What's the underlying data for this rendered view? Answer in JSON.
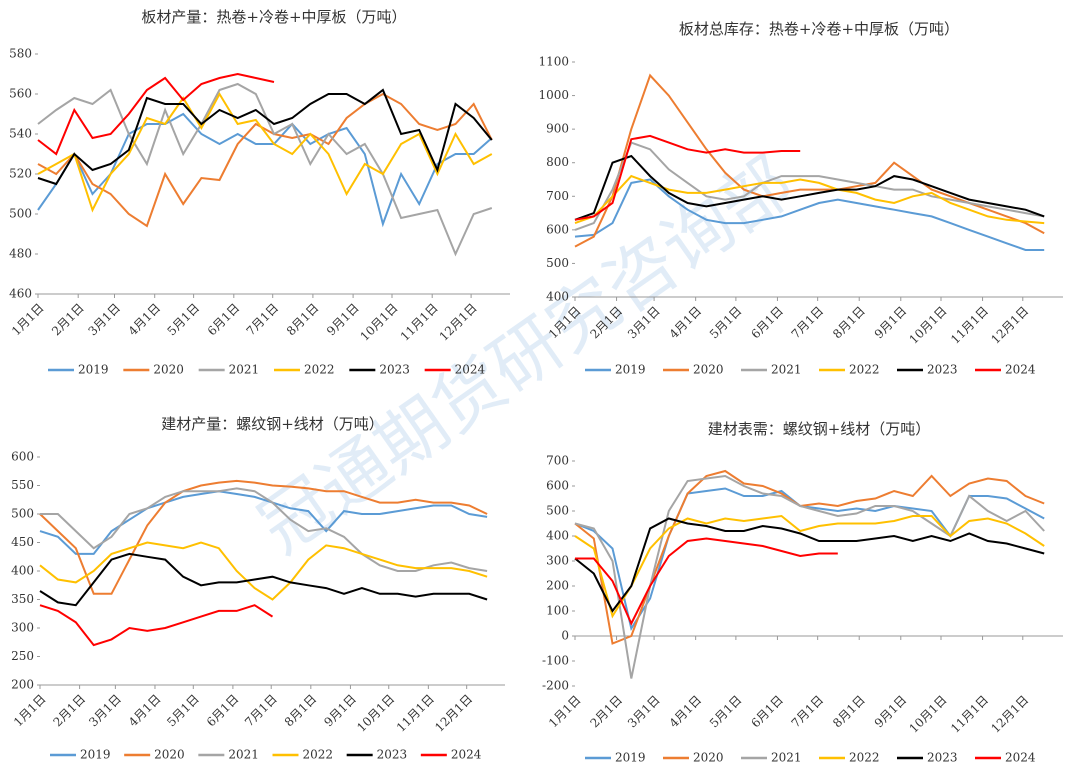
{
  "watermark": "冠通期货研究咨询部",
  "chart_data": [
    {
      "type": "line",
      "title": "板材产量：热卷+冷卷+中厚板（万吨）",
      "x": [
        1,
        15,
        29,
        43,
        57,
        71,
        85,
        99,
        113,
        127,
        141,
        155,
        169,
        183,
        197,
        211,
        225,
        239,
        253,
        267,
        281,
        295,
        309,
        323,
        337,
        351
      ],
      "xlim": [
        1,
        365
      ],
      "xticks": [
        {
          "value": 1,
          "label": "1月1日"
        },
        {
          "value": 32,
          "label": "2月1日"
        },
        {
          "value": 60,
          "label": "3月1日"
        },
        {
          "value": 91,
          "label": "4月1日"
        },
        {
          "value": 121,
          "label": "5月1日"
        },
        {
          "value": 152,
          "label": "6月1日"
        },
        {
          "value": 182,
          "label": "7月1日"
        },
        {
          "value": 213,
          "label": "8月1日"
        },
        {
          "value": 244,
          "label": "9月1日"
        },
        {
          "value": 274,
          "label": "10月1日"
        },
        {
          "value": 305,
          "label": "11月1日"
        },
        {
          "value": 335,
          "label": "12月1日"
        }
      ],
      "ylim": [
        460,
        580
      ],
      "yticks": [
        460,
        480,
        500,
        520,
        540,
        560,
        580
      ],
      "series": [
        {
          "name": "2019",
          "color": "#5b9bd5",
          "values": [
            502,
            515,
            530,
            510,
            520,
            540,
            545,
            545,
            550,
            540,
            535,
            540,
            535,
            535,
            545,
            535,
            540,
            543,
            530,
            495,
            520,
            505,
            525,
            530,
            530,
            538
          ]
        },
        {
          "name": "2020",
          "color": "#ed7d31",
          "values": [
            525,
            520,
            530,
            515,
            510,
            500,
            494,
            520,
            505,
            518,
            517,
            535,
            545,
            540,
            538,
            540,
            535,
            548,
            555,
            560,
            555,
            545,
            542,
            545,
            555,
            537
          ]
        },
        {
          "name": "2021",
          "color": "#a5a5a5",
          "values": [
            545,
            552,
            558,
            555,
            562,
            540,
            525,
            552,
            530,
            545,
            562,
            565,
            560,
            540,
            545,
            525,
            540,
            530,
            535,
            520,
            498,
            500,
            502,
            480,
            500,
            503
          ]
        },
        {
          "name": "2022",
          "color": "#ffc000",
          "values": [
            520,
            525,
            530,
            502,
            520,
            530,
            548,
            545,
            558,
            543,
            560,
            545,
            547,
            535,
            530,
            540,
            530,
            510,
            525,
            520,
            535,
            540,
            520,
            540,
            525,
            530
          ]
        },
        {
          "name": "2023",
          "color": "#000000",
          "values": [
            518,
            515,
            530,
            522,
            525,
            532,
            558,
            555,
            555,
            545,
            552,
            548,
            552,
            545,
            548,
            555,
            560,
            560,
            555,
            562,
            540,
            542,
            522,
            555,
            548,
            537
          ]
        },
        {
          "name": "2024",
          "color": "#ff0000",
          "values": [
            537,
            530,
            552,
            538,
            540,
            550,
            562,
            568,
            557,
            565,
            568,
            570,
            568,
            566,
            null,
            null,
            null,
            null,
            null,
            null,
            null,
            null,
            null,
            null,
            null,
            null
          ]
        }
      ]
    },
    {
      "type": "line",
      "title": "板材总库存：热卷+冷卷+中厚板（万吨）",
      "x": [
        1,
        15,
        29,
        43,
        57,
        71,
        85,
        99,
        113,
        127,
        141,
        155,
        169,
        183,
        197,
        211,
        225,
        239,
        253,
        267,
        281,
        295,
        309,
        323,
        337,
        351
      ],
      "xlim": [
        1,
        365
      ],
      "xticks": [
        {
          "value": 1,
          "label": "1月1日"
        },
        {
          "value": 32,
          "label": "2月1日"
        },
        {
          "value": 60,
          "label": "3月1日"
        },
        {
          "value": 91,
          "label": "4月1日"
        },
        {
          "value": 121,
          "label": "5月1日"
        },
        {
          "value": 152,
          "label": "6月1日"
        },
        {
          "value": 182,
          "label": "7月1日"
        },
        {
          "value": 213,
          "label": "8月1日"
        },
        {
          "value": 244,
          "label": "9月1日"
        },
        {
          "value": 274,
          "label": "10月1日"
        },
        {
          "value": 305,
          "label": "11月1日"
        },
        {
          "value": 335,
          "label": "12月1日"
        }
      ],
      "ylim": [
        400,
        1100
      ],
      "yticks": [
        400,
        500,
        600,
        700,
        800,
        900,
        1000,
        1100
      ],
      "series": [
        {
          "name": "2019",
          "color": "#5b9bd5",
          "values": [
            580,
            585,
            620,
            740,
            750,
            700,
            660,
            630,
            620,
            620,
            630,
            640,
            660,
            680,
            690,
            680,
            670,
            660,
            650,
            640,
            620,
            600,
            580,
            560,
            540,
            540
          ]
        },
        {
          "name": "2020",
          "color": "#ed7d31",
          "values": [
            550,
            580,
            700,
            900,
            1060,
            1000,
            920,
            840,
            770,
            720,
            700,
            710,
            720,
            720,
            720,
            730,
            740,
            800,
            760,
            720,
            700,
            680,
            660,
            640,
            620,
            590
          ]
        },
        {
          "name": "2021",
          "color": "#a5a5a5",
          "values": [
            600,
            620,
            720,
            860,
            840,
            780,
            740,
            700,
            690,
            700,
            740,
            760,
            760,
            760,
            750,
            740,
            730,
            720,
            720,
            700,
            690,
            680,
            670,
            660,
            650,
            640
          ]
        },
        {
          "name": "2022",
          "color": "#ffc000",
          "values": [
            620,
            640,
            700,
            760,
            740,
            720,
            710,
            710,
            720,
            730,
            740,
            740,
            750,
            740,
            720,
            710,
            690,
            680,
            700,
            710,
            680,
            660,
            640,
            630,
            625,
            620
          ]
        },
        {
          "name": "2023",
          "color": "#000000",
          "values": [
            630,
            650,
            800,
            820,
            760,
            710,
            680,
            670,
            680,
            690,
            700,
            690,
            700,
            710,
            720,
            720,
            730,
            760,
            750,
            730,
            710,
            690,
            680,
            670,
            660,
            640
          ]
        },
        {
          "name": "2024",
          "color": "#ff0000",
          "values": [
            630,
            640,
            680,
            870,
            880,
            860,
            840,
            830,
            840,
            830,
            830,
            835,
            835,
            null,
            null,
            null,
            null,
            null,
            null,
            null,
            null,
            null,
            null,
            null,
            null,
            null
          ]
        }
      ]
    },
    {
      "type": "line",
      "title": "建材产量：螺纹钢+线材（万吨）",
      "x": [
        1,
        15,
        29,
        43,
        57,
        71,
        85,
        99,
        113,
        127,
        141,
        155,
        169,
        183,
        197,
        211,
        225,
        239,
        253,
        267,
        281,
        295,
        309,
        323,
        337,
        351
      ],
      "xlim": [
        1,
        365
      ],
      "xticks": [
        {
          "value": 1,
          "label": "1月1日"
        },
        {
          "value": 32,
          "label": "2月1日"
        },
        {
          "value": 60,
          "label": "3月1日"
        },
        {
          "value": 91,
          "label": "4月1日"
        },
        {
          "value": 121,
          "label": "5月1日"
        },
        {
          "value": 152,
          "label": "6月1日"
        },
        {
          "value": 182,
          "label": "7月1日"
        },
        {
          "value": 213,
          "label": "8月1日"
        },
        {
          "value": 244,
          "label": "9月1日"
        },
        {
          "value": 274,
          "label": "10月1日"
        },
        {
          "value": 305,
          "label": "11月1日"
        },
        {
          "value": 335,
          "label": "12月1日"
        }
      ],
      "ylim": [
        200,
        600
      ],
      "yticks": [
        200,
        250,
        300,
        350,
        400,
        450,
        500,
        550,
        600
      ],
      "series": [
        {
          "name": "2019",
          "color": "#5b9bd5",
          "values": [
            470,
            460,
            430,
            430,
            470,
            490,
            510,
            520,
            530,
            535,
            540,
            535,
            530,
            520,
            510,
            505,
            470,
            505,
            500,
            500,
            505,
            510,
            515,
            515,
            500,
            495
          ]
        },
        {
          "name": "2020",
          "color": "#ed7d31",
          "values": [
            500,
            470,
            440,
            360,
            360,
            420,
            480,
            520,
            540,
            550,
            555,
            558,
            555,
            550,
            548,
            545,
            540,
            540,
            530,
            520,
            520,
            525,
            520,
            520,
            515,
            500
          ]
        },
        {
          "name": "2021",
          "color": "#a5a5a5",
          "values": [
            500,
            500,
            470,
            440,
            460,
            500,
            510,
            530,
            540,
            540,
            540,
            545,
            540,
            520,
            490,
            470,
            475,
            460,
            430,
            410,
            400,
            400,
            410,
            415,
            405,
            400
          ]
        },
        {
          "name": "2022",
          "color": "#ffc000",
          "values": [
            410,
            385,
            380,
            400,
            430,
            440,
            450,
            445,
            440,
            450,
            440,
            400,
            370,
            350,
            380,
            420,
            445,
            440,
            430,
            420,
            410,
            405,
            405,
            405,
            400,
            390
          ]
        },
        {
          "name": "2023",
          "color": "#000000",
          "values": [
            365,
            345,
            340,
            380,
            420,
            430,
            425,
            420,
            390,
            375,
            380,
            380,
            385,
            390,
            380,
            375,
            370,
            360,
            370,
            360,
            360,
            355,
            360,
            360,
            360,
            350
          ]
        },
        {
          "name": "2024",
          "color": "#ff0000",
          "values": [
            340,
            330,
            310,
            270,
            280,
            300,
            295,
            300,
            310,
            320,
            330,
            330,
            340,
            320,
            null,
            null,
            null,
            null,
            null,
            null,
            null,
            null,
            null,
            null,
            null,
            null
          ]
        }
      ]
    },
    {
      "type": "line",
      "title": "建材表需：螺纹钢+线材（万吨）",
      "x": [
        1,
        15,
        29,
        43,
        57,
        71,
        85,
        99,
        113,
        127,
        141,
        155,
        169,
        183,
        197,
        211,
        225,
        239,
        253,
        267,
        281,
        295,
        309,
        323,
        337,
        351
      ],
      "xlim": [
        1,
        365
      ],
      "xticks": [
        {
          "value": 1,
          "label": "1月1日"
        },
        {
          "value": 32,
          "label": "2月1日"
        },
        {
          "value": 60,
          "label": "3月1日"
        },
        {
          "value": 91,
          "label": "4月1日"
        },
        {
          "value": 121,
          "label": "5月1日"
        },
        {
          "value": 152,
          "label": "6月1日"
        },
        {
          "value": 182,
          "label": "7月1日"
        },
        {
          "value": 213,
          "label": "8月1日"
        },
        {
          "value": 244,
          "label": "9月1日"
        },
        {
          "value": 274,
          "label": "10月1日"
        },
        {
          "value": 305,
          "label": "11月1日"
        },
        {
          "value": 335,
          "label": "12月1日"
        }
      ],
      "ylim": [
        -200,
        700
      ],
      "yticks": [
        -200,
        -100,
        0,
        100,
        200,
        300,
        400,
        500,
        600,
        700
      ],
      "series": [
        {
          "name": "2019",
          "color": "#5b9bd5",
          "values": [
            450,
            420,
            350,
            30,
            150,
            400,
            570,
            580,
            590,
            560,
            560,
            580,
            520,
            510,
            500,
            510,
            500,
            520,
            510,
            500,
            400,
            560,
            560,
            550,
            510,
            470
          ]
        },
        {
          "name": "2020",
          "color": "#ed7d31",
          "values": [
            450,
            390,
            -30,
            0,
            200,
            400,
            570,
            640,
            660,
            610,
            600,
            570,
            520,
            530,
            520,
            540,
            550,
            580,
            560,
            640,
            560,
            610,
            630,
            620,
            560,
            530
          ]
        },
        {
          "name": "2021",
          "color": "#a5a5a5",
          "values": [
            450,
            430,
            300,
            -170,
            200,
            500,
            620,
            630,
            640,
            600,
            570,
            560,
            520,
            500,
            480,
            490,
            520,
            520,
            500,
            450,
            400,
            560,
            500,
            460,
            500,
            420
          ]
        },
        {
          "name": "2022",
          "color": "#ffc000",
          "values": [
            400,
            350,
            80,
            200,
            350,
            430,
            470,
            450,
            470,
            460,
            470,
            480,
            420,
            440,
            450,
            450,
            450,
            460,
            480,
            480,
            400,
            460,
            470,
            450,
            410,
            360
          ]
        },
        {
          "name": "2023",
          "color": "#000000",
          "values": [
            310,
            250,
            100,
            200,
            430,
            470,
            450,
            440,
            420,
            420,
            440,
            430,
            410,
            380,
            380,
            380,
            390,
            400,
            380,
            400,
            380,
            410,
            380,
            370,
            350,
            330
          ]
        },
        {
          "name": "2024",
          "color": "#ff0000",
          "values": [
            310,
            310,
            220,
            50,
            200,
            320,
            380,
            390,
            380,
            370,
            360,
            340,
            320,
            330,
            330,
            null,
            null,
            null,
            null,
            null,
            null,
            null,
            null,
            null,
            null,
            null
          ]
        }
      ]
    }
  ]
}
